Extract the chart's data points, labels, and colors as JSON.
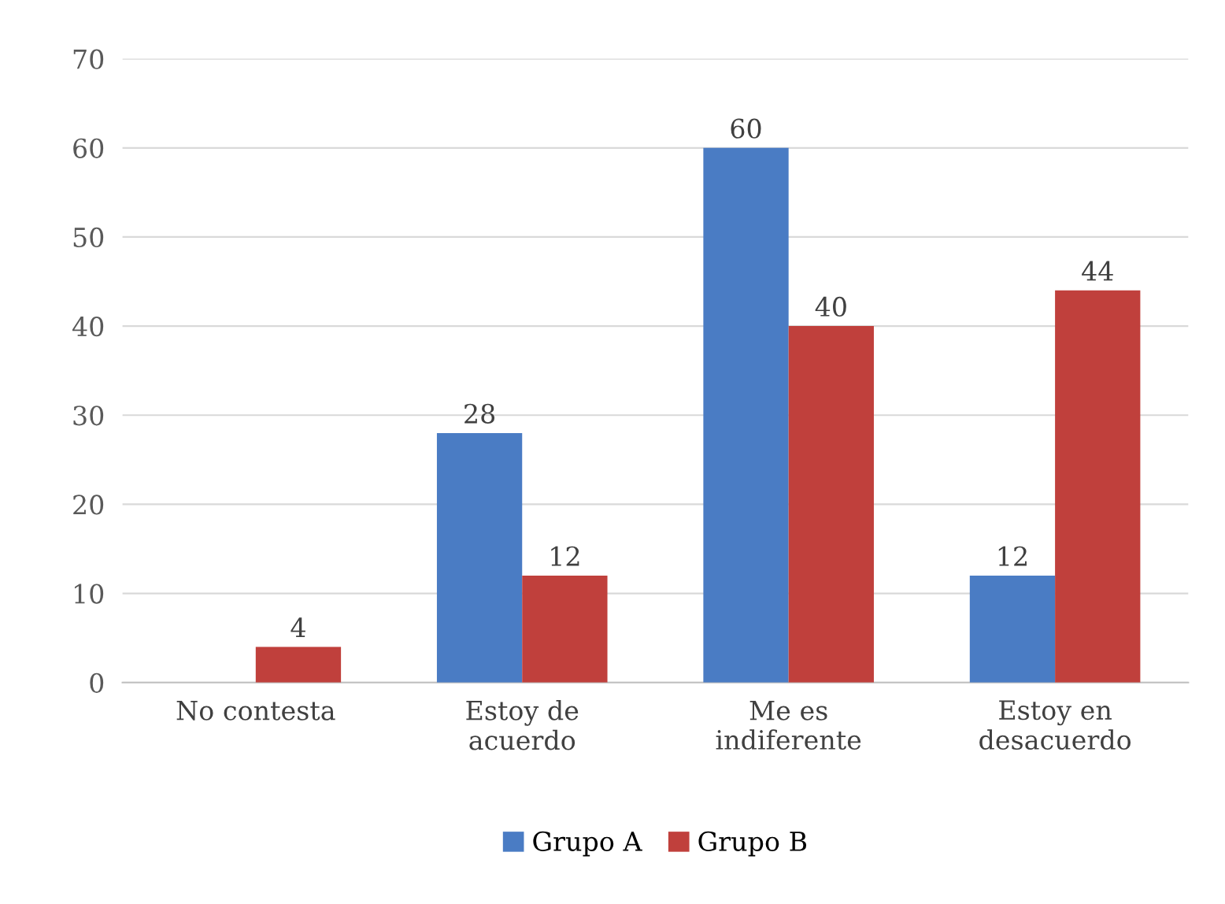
{
  "chart_data": {
    "type": "bar",
    "categories": [
      "No contesta",
      "Estoy de\nacuerdo",
      "Me es\nindiferente",
      "Estoy en\ndesacuerdo"
    ],
    "series": [
      {
        "name": "Grupo A",
        "color": "#4a7cc4",
        "values": [
          0,
          28,
          60,
          12
        ],
        "value_labels": [
          null,
          "28",
          "60",
          "12"
        ]
      },
      {
        "name": "Grupo B",
        "color": "#c0403c",
        "values": [
          4,
          12,
          40,
          44
        ],
        "value_labels": [
          "4",
          "12",
          "40",
          "44"
        ]
      }
    ],
    "ylim": [
      0,
      70
    ],
    "yticks": [
      0,
      10,
      20,
      30,
      40,
      50,
      60,
      70
    ],
    "grid": "y",
    "legend": "bottom"
  }
}
